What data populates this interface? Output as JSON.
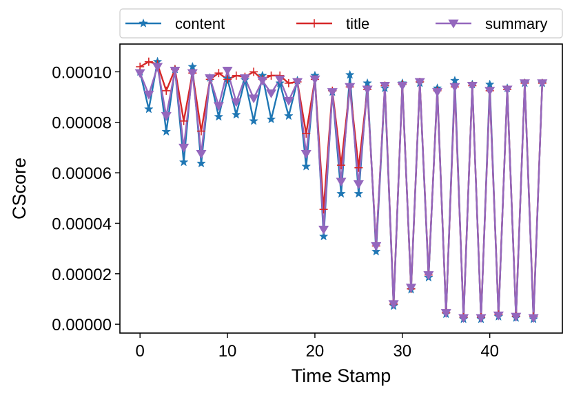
{
  "chart_data": {
    "type": "line",
    "xlabel": "Time Stamp",
    "ylabel": "CScore",
    "xlim": [
      -2.3,
      48.3
    ],
    "ylim": [
      -3.5e-06,
      0.000111
    ],
    "xticks": [
      0,
      10,
      20,
      30,
      40
    ],
    "yticks": [
      0,
      2e-05,
      4e-05,
      6e-05,
      8e-05,
      0.0001
    ],
    "xtick_labels": [
      "0",
      "10",
      "20",
      "30",
      "40"
    ],
    "ytick_labels": [
      "0.00000",
      "0.00002",
      "0.00004",
      "0.00006",
      "0.00008",
      "0.00010"
    ],
    "legend_position": "above plot, horizontal",
    "series": [
      {
        "name": "content",
        "color": "#1f77b4",
        "marker": "star",
        "x": [
          0,
          1,
          2,
          3,
          4,
          5,
          6,
          7,
          8,
          9,
          10,
          11,
          12,
          13,
          14,
          15,
          16,
          17,
          18,
          19,
          20,
          21,
          22,
          23,
          24,
          25,
          26,
          27,
          28,
          29,
          30,
          31,
          32,
          33,
          34,
          35,
          36,
          37,
          38,
          39,
          40,
          41,
          42,
          43,
          44,
          45,
          46
        ],
        "values": [
          0.0001,
          8.52e-05,
          0.000104,
          7.63e-05,
          0.000101,
          6.42e-05,
          0.000102,
          6.37e-05,
          9.76e-05,
          8.22e-05,
          9.73e-05,
          8.3e-05,
          9.68e-05,
          8.05e-05,
          9.85e-05,
          8.12e-05,
          9.55e-05,
          8.25e-05,
          9.65e-05,
          6.25e-05,
          9.85e-05,
          3.48e-05,
          9.2e-05,
          5.17e-05,
          9.88e-05,
          5.17e-05,
          9.55e-05,
          2.88e-05,
          9.35e-05,
          7.2e-06,
          9.55e-05,
          1.37e-05,
          9.55e-05,
          1.85e-05,
          9.35e-05,
          4e-06,
          9.65e-05,
          2e-06,
          9.5e-05,
          2e-06,
          9.5e-05,
          3e-06,
          9.35e-05,
          2.5e-06,
          9.55e-05,
          2e-06,
          9.55e-05
        ]
      },
      {
        "name": "title",
        "color": "#d62728",
        "marker": "plus",
        "x": [
          0,
          1,
          2,
          3,
          4,
          5,
          6,
          7,
          8,
          9,
          10,
          11,
          12,
          13,
          14,
          15,
          16,
          17,
          18,
          19,
          20,
          21,
          22,
          23,
          24,
          25,
          26,
          27,
          28,
          29,
          30,
          31,
          32,
          33,
          34,
          35,
          36,
          37,
          38,
          39,
          40,
          41,
          42,
          43,
          44,
          45,
          46
        ],
        "values": [
          0.000102,
          0.000104,
          0.000103,
          9.25e-05,
          0.000101,
          8.05e-05,
          9.95e-05,
          7.65e-05,
          9.7e-05,
          9.95e-05,
          9.7e-05,
          9.85e-05,
          9.8e-05,
          0.0001,
          9.7e-05,
          9.85e-05,
          9.85e-05,
          9.55e-05,
          9.6e-05,
          7.55e-05,
          9.7e-05,
          4.55e-05,
          9.25e-05,
          6.3e-05,
          9.4e-05,
          6.2e-05,
          9.3e-05,
          3.1e-05,
          9.45e-05,
          8e-06,
          9.5e-05,
          1.4e-05,
          9.6e-05,
          1.95e-05,
          9.25e-05,
          4.5e-06,
          9.4e-05,
          2.8e-06,
          9.45e-05,
          2.8e-06,
          9.25e-05,
          3.8e-06,
          9.3e-05,
          3.2e-06,
          9.55e-05,
          3e-06,
          9.55e-05
        ]
      },
      {
        "name": "summary",
        "color": "#9467bd",
        "marker": "triangle-down",
        "x": [
          0,
          1,
          2,
          3,
          4,
          5,
          6,
          7,
          8,
          9,
          10,
          11,
          12,
          13,
          14,
          15,
          16,
          17,
          18,
          19,
          20,
          21,
          22,
          23,
          24,
          25,
          26,
          27,
          28,
          29,
          30,
          31,
          32,
          33,
          34,
          35,
          36,
          37,
          38,
          39,
          40,
          41,
          42,
          43,
          44,
          45,
          46
        ],
        "values": [
          9.95e-05,
          9.1e-05,
          0.000102,
          8.25e-05,
          0.0001005,
          7e-05,
          9.95e-05,
          6.75e-05,
          9.75e-05,
          8.65e-05,
          0.0001005,
          8.8e-05,
          9.75e-05,
          8.95e-05,
          9.65e-05,
          9.15e-05,
          9.7e-05,
          8.85e-05,
          9.6e-05,
          6.75e-05,
          9.7e-05,
          3.75e-05,
          9.2e-05,
          5.65e-05,
          9.4e-05,
          5.55e-05,
          9.3e-05,
          3.1e-05,
          9.45e-05,
          8e-06,
          9.45e-05,
          1.45e-05,
          9.6e-05,
          1.95e-05,
          9.2e-05,
          4.5e-06,
          9.4e-05,
          2.5e-06,
          9.45e-05,
          2.5e-06,
          9.25e-05,
          3.5e-06,
          9.3e-05,
          3e-06,
          9.55e-05,
          2.5e-06,
          9.55e-05
        ]
      }
    ]
  }
}
